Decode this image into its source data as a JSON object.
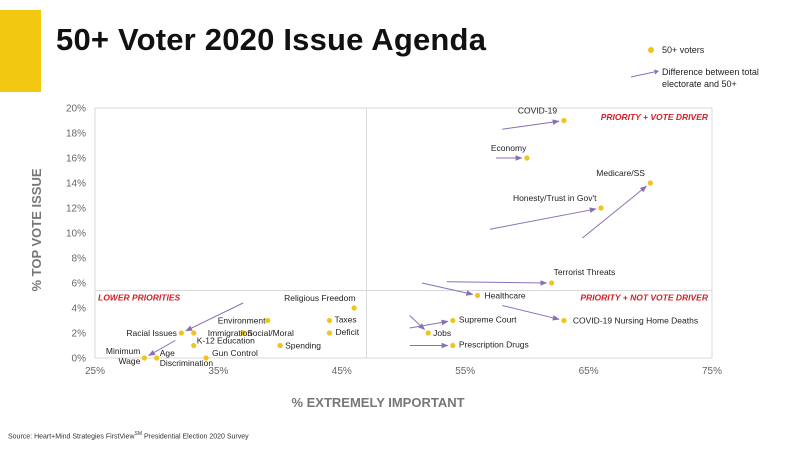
{
  "title": "50+ Voter 2020 Issue Agenda",
  "legend": {
    "dot_label": "50+ voters",
    "arrow_label_line1": "Difference between total",
    "arrow_label_line2": "electorate and 50+"
  },
  "source": {
    "text": "Source: Heart+Mind Strategies FirstView",
    "sup": "SM",
    "text_after": " Presidential Election 2020 Survey"
  },
  "colors": {
    "accent": "#f2c811",
    "dot": "#f0c419",
    "arrow": "#8b6fb5",
    "quadrant_label": "#d22027",
    "gridline": "#d9d9d9"
  },
  "chart_data": {
    "type": "scatter",
    "title": "50+ Voter 2020 Issue Agenda",
    "xlabel": "% EXTREMELY IMPORTANT",
    "ylabel": "% TOP VOTE ISSUE",
    "xlim": [
      25,
      75
    ],
    "ylim": [
      0,
      20
    ],
    "x_ticks": [
      "25%",
      "35%",
      "45%",
      "55%",
      "65%",
      "75%"
    ],
    "x_tick_values": [
      25,
      35,
      45,
      55,
      65,
      75
    ],
    "y_ticks": [
      "0%",
      "2%",
      "4%",
      "6%",
      "8%",
      "10%",
      "12%",
      "14%",
      "16%",
      "18%",
      "20%"
    ],
    "y_tick_values": [
      0,
      2,
      4,
      6,
      8,
      10,
      12,
      14,
      16,
      18,
      20
    ],
    "divider": {
      "x": 47,
      "y": 5.4
    },
    "quadrants": [
      {
        "label": "PRIORITY + VOTE DRIVER",
        "position": "top-right"
      },
      {
        "label": "LOWER PRIORITIES",
        "position": "bottom-left"
      },
      {
        "label": "PRIORITY + NOT VOTE DRIVER",
        "position": "bottom-right"
      }
    ],
    "points": [
      {
        "label": "COVID-19",
        "x": 63,
        "y": 19,
        "from": [
          58,
          18.3
        ]
      },
      {
        "label": "Economy",
        "x": 60,
        "y": 16,
        "from": [
          57.5,
          16
        ]
      },
      {
        "label": "Medicare/SS",
        "x": 70,
        "y": 14,
        "from": [
          64.5,
          9.6
        ]
      },
      {
        "label": "Honesty/Trust in Gov't",
        "x": 66,
        "y": 12,
        "from": [
          57,
          10.3
        ]
      },
      {
        "label": "Terrorist Threats",
        "x": 62,
        "y": 6,
        "from": [
          53.5,
          6.1
        ]
      },
      {
        "label": "Healthcare",
        "x": 56,
        "y": 5,
        "from": [
          51.5,
          6.0
        ]
      },
      {
        "label": "COVID-19 Nursing Home Deaths",
        "x": 63,
        "y": 3,
        "from": [
          58,
          4.2
        ]
      },
      {
        "label": "Supreme Court",
        "x": 54,
        "y": 3,
        "from": [
          50.5,
          2.4
        ]
      },
      {
        "label": "Jobs",
        "x": 52,
        "y": 2,
        "from": [
          50.5,
          3.4
        ]
      },
      {
        "label": "Prescription Drugs",
        "x": 54,
        "y": 1,
        "from": [
          50.5,
          1.0
        ]
      },
      {
        "label": "Religious Freedom",
        "x": 46,
        "y": 4,
        "from": null
      },
      {
        "label": "Taxes",
        "x": 44,
        "y": 3,
        "from": null
      },
      {
        "label": "Deficit",
        "x": 44,
        "y": 2,
        "from": null
      },
      {
        "label": "Environment",
        "x": 39,
        "y": 3,
        "from": null
      },
      {
        "label": "Social/Moral",
        "x": 37,
        "y": 2,
        "from": null
      },
      {
        "label": "Spending",
        "x": 40,
        "y": 1,
        "from": null
      },
      {
        "label": "Racial Issues",
        "x": 32,
        "y": 2,
        "from": [
          37,
          4.4
        ]
      },
      {
        "label": "Immigration",
        "x": 33,
        "y": 2,
        "from": null
      },
      {
        "label": "K-12 Education",
        "x": 33,
        "y": 1,
        "from": null
      },
      {
        "label": "Gun Control",
        "x": 34,
        "y": 0,
        "from": null
      },
      {
        "label": "Minimum Wage",
        "x": 29,
        "y": 0,
        "from": [
          31.5,
          1.4
        ]
      },
      {
        "label": "Age Discrimination",
        "x": 30,
        "y": 0,
        "from": null
      }
    ]
  }
}
